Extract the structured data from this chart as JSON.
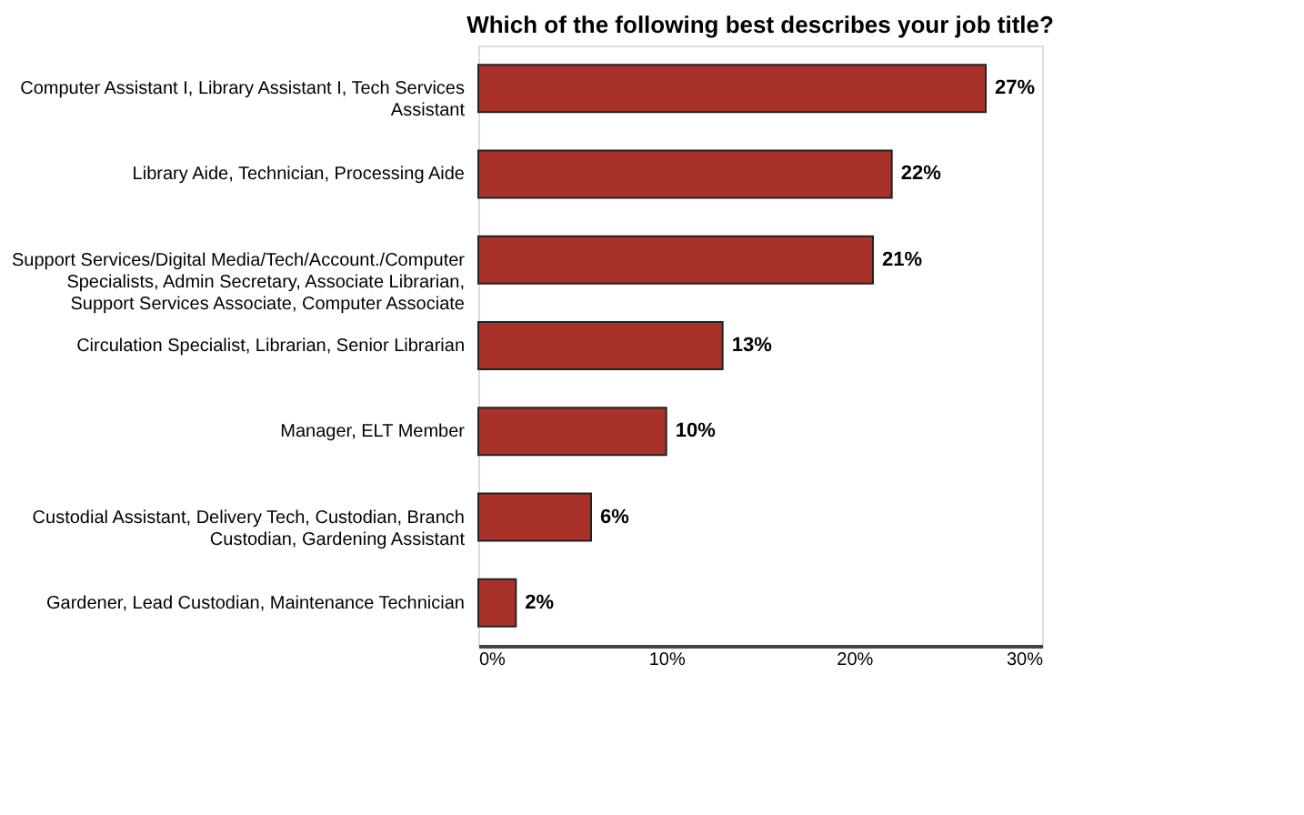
{
  "chart_data": {
    "type": "bar",
    "orientation": "horizontal",
    "title": "Which of the following best describes your job title?",
    "categories": [
      "Computer Assistant I, Library Assistant I, Tech Services Assistant",
      "Library Aide, Technician, Processing Aide",
      "Support Services/Digital Media/Tech/Account./Computer Specialists, Admin Secretary, Associate Librarian, Support Services Associate, Computer Associate",
      "Circulation Specialist, Librarian, Senior Librarian",
      "Manager, ELT Member",
      "Custodial Assistant, Delivery Tech, Custodian, Branch Custodian, Gardening Assistant",
      "Gardener, Lead Custodian, Maintenance Technician"
    ],
    "values": [
      27,
      22,
      21,
      13,
      10,
      6,
      2
    ],
    "value_labels": [
      "27%",
      "22%",
      "21%",
      "13%",
      "10%",
      "6%",
      "2%"
    ],
    "color": "#a8322a",
    "xlim": [
      0,
      30
    ],
    "xticks": [
      {
        "value": 0,
        "label": "0%"
      },
      {
        "value": 10,
        "label": "10%"
      },
      {
        "value": 20,
        "label": "20%"
      },
      {
        "value": 30,
        "label": "30%"
      }
    ],
    "grid": false
  }
}
